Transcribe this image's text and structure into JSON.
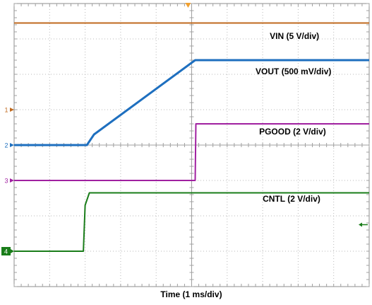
{
  "chart_data": {
    "type": "line",
    "title": "",
    "xlabel": "Time (1 ms/div)",
    "x_divisions": 10,
    "y_divisions": 8,
    "xlim": [
      0,
      10
    ],
    "ylim": [
      0,
      8
    ],
    "grid": true,
    "background": "#ffffff",
    "grid_color": "#b9b9b9",
    "trigger_marker_x": 4.9,
    "series": [
      {
        "name": "VIN (5 V/div)",
        "channel": "1",
        "color": "#c06a1f",
        "scale": "5 V/div",
        "ground_level_div": 5.0,
        "x": [
          0,
          10
        ],
        "y_div": [
          7.45,
          7.45
        ]
      },
      {
        "name": "VOUT (500 mV/div)",
        "channel": "2",
        "color": "#1e6fbf",
        "scale": "500 mV/div",
        "ground_level_div": 4.0,
        "x": [
          0,
          2.05,
          2.25,
          5.1,
          10
        ],
        "y_div": [
          4.0,
          4.0,
          4.3,
          6.4,
          6.4
        ]
      },
      {
        "name": "PGOOD (2 V/div)",
        "channel": "3",
        "color": "#a020a0",
        "scale": "2 V/div",
        "ground_level_div": 3.0,
        "x": [
          0,
          5.1,
          5.12,
          10
        ],
        "y_div": [
          3.0,
          3.0,
          4.6,
          4.6
        ]
      },
      {
        "name": "CNTL (2 V/div)",
        "channel": "4",
        "color": "#1a7d1a",
        "scale": "2 V/div",
        "ground_level_div": 1.0,
        "x": [
          0,
          1.95,
          2.0,
          2.12,
          10
        ],
        "y_div": [
          1.0,
          1.0,
          2.3,
          2.65,
          2.65
        ]
      }
    ],
    "labels": [
      {
        "text": "VIN (5 V/div)",
        "x": 7.2,
        "y_div": 7.0
      },
      {
        "text": "VOUT (500 mV/div)",
        "x": 6.8,
        "y_div": 6.0
      },
      {
        "text": "PGOOD (2 V/div)",
        "x": 6.9,
        "y_div": 4.3
      },
      {
        "text": "CNTL (2 V/div)",
        "x": 7.0,
        "y_div": 2.4
      }
    ],
    "channel_markers": [
      {
        "label": "1",
        "y_div": 5.0,
        "color": "#c06a1f",
        "style": "plain"
      },
      {
        "label": "2",
        "y_div": 4.0,
        "color": "#1e6fbf",
        "style": "plain"
      },
      {
        "label": "3",
        "y_div": 3.0,
        "color": "#a020a0",
        "style": "plain"
      },
      {
        "label": "4",
        "y_div": 1.0,
        "color": "#1a7d1a",
        "style": "box"
      }
    ],
    "right_marker": {
      "y_div": 1.75,
      "color": "#1a7d1a"
    }
  }
}
